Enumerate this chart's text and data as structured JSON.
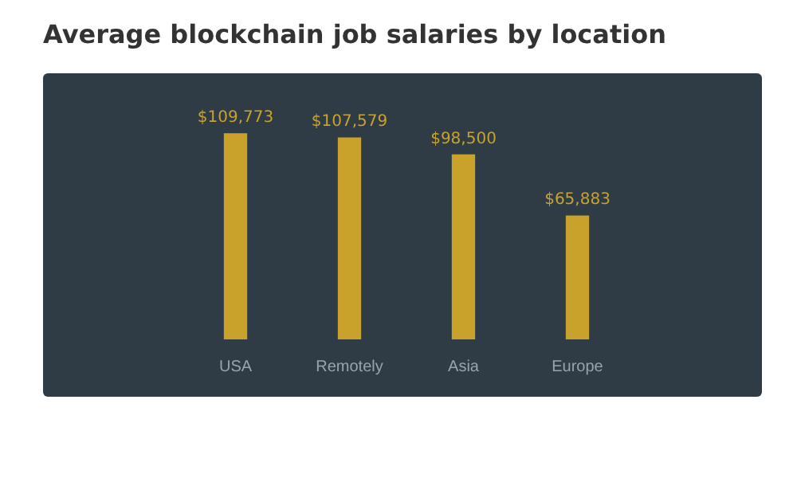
{
  "chart_data": {
    "type": "bar",
    "title": "Average blockchain job salaries by location",
    "categories": [
      "USA",
      "Remotely",
      "Asia",
      "Europe"
    ],
    "values": [
      109773,
      107579,
      98500,
      65883
    ],
    "value_labels": [
      "$109,773",
      "$107,579",
      "$98,500",
      "$65,883"
    ],
    "color": "#c9a22c",
    "grid": false,
    "legend": false
  }
}
